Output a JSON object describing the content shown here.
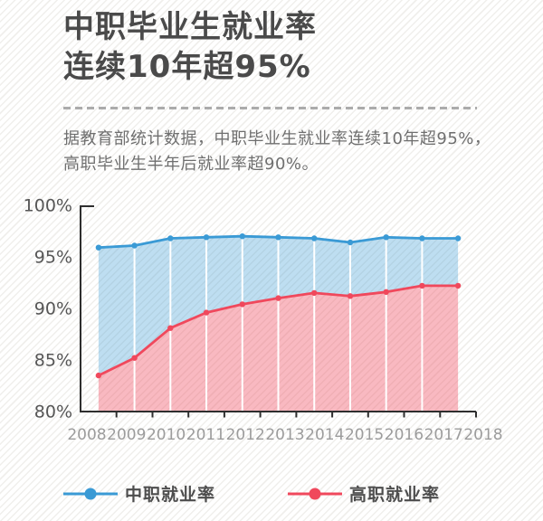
{
  "poster": {
    "title_line1": "中职毕业生就业率",
    "title_line2": "连续10年超95%",
    "subtitle_line1": "据教育部统计数据，中职毕业生就业率连续10年超95%，",
    "subtitle_line2": "高职毕业生半年后就业率超90%。"
  },
  "chart_data": {
    "type": "area",
    "title": "中职毕业生就业率连续10年超95%",
    "x": [
      "2008",
      "2009",
      "2010",
      "2011",
      "2012",
      "2013",
      "2014",
      "2015",
      "2016",
      "2017",
      "2018"
    ],
    "series": [
      {
        "name": "中职就业率",
        "color": "#3a9ad5",
        "fill": "rgba(58,154,213,0.33)",
        "values": [
          95.9,
          96.1,
          96.8,
          96.9,
          97.0,
          96.9,
          96.8,
          96.4,
          96.9,
          96.8,
          96.8
        ]
      },
      {
        "name": "高职就业率",
        "color": "#f0485c",
        "fill": "rgba(240,72,92,0.38)",
        "values": [
          83.5,
          85.2,
          88.1,
          89.6,
          90.4,
          91.0,
          91.5,
          91.2,
          91.6,
          92.2,
          92.2
        ]
      }
    ],
    "ylim": [
      80,
      100
    ],
    "yticks": [
      {
        "v": 100,
        "label": "100%"
      },
      {
        "v": 95,
        "label": "95%"
      },
      {
        "v": 90,
        "label": "90%"
      },
      {
        "v": 85,
        "label": "85%"
      },
      {
        "v": 80,
        "label": "80%"
      }
    ],
    "grid": false,
    "legend_position": "bottom",
    "notes": "stacked look: blue band between series lines, pink band below lower line; white vertical separator lines at interior data points"
  },
  "legend": {
    "items": [
      {
        "label": "中职就业率",
        "color": "#3a9ad5"
      },
      {
        "label": "高职就业率",
        "color": "#f0485c"
      }
    ]
  },
  "colors": {
    "title_text": "#4a4a4a",
    "subtitle_text": "#6f6f6f",
    "axis_line": "#2e2e2e",
    "y_axis_labels": "#565656",
    "x_axis_labels": "#9c9c9c",
    "divider_dash": "#ababab",
    "background_stripe": "#f0efec",
    "separator_line": "#ffffff"
  }
}
